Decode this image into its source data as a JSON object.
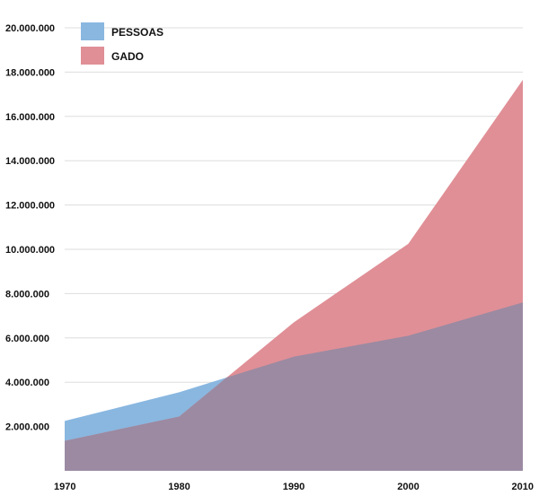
{
  "chart_data": {
    "type": "area",
    "x": [
      1970,
      1980,
      1990,
      2000,
      2010
    ],
    "x_tick_labels": [
      "1970",
      "1980",
      "1990",
      "2000",
      "2010"
    ],
    "series": [
      {
        "name": "PESSOAS",
        "values": [
          2250000,
          3550000,
          5150000,
          6100000,
          7600000
        ],
        "color": "#89b7e0"
      },
      {
        "name": "GADO",
        "values": [
          1350000,
          2450000,
          6700000,
          10250000,
          17650000
        ],
        "color": "#e08f96"
      }
    ],
    "overlap_color": "#9b8aa2",
    "y_ticks": [
      2000000,
      4000000,
      6000000,
      8000000,
      10000000,
      12000000,
      14000000,
      16000000,
      18000000,
      20000000
    ],
    "y_tick_labels": [
      "2.000.000",
      "4.000.000",
      "6.000.000",
      "8.000.000",
      "10.000.000",
      "12.000.000",
      "14.000.000",
      "16.000.000",
      "18.000.000",
      "20.000.000"
    ],
    "ylim": [
      0,
      20000000
    ],
    "grid": true,
    "legend_position": "top-left",
    "title": "",
    "xlabel": "",
    "ylabel": ""
  }
}
